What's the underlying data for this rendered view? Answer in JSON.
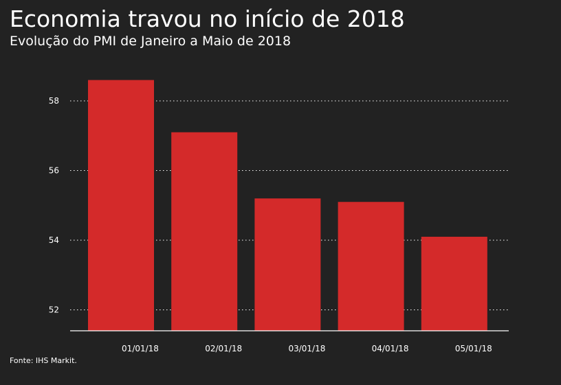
{
  "header": {
    "title": "Economia travou no início de 2018",
    "subtitle": "Evolução do PMI de Janeiro a Maio de 2018"
  },
  "footer": {
    "source": "Fonte: IHS Markit."
  },
  "colors": {
    "background": "#222222",
    "bar": "#d42a2a",
    "text": "#ffffff",
    "grid": "#ffffff"
  },
  "chart_data": {
    "type": "bar",
    "categories": [
      "01/01/18",
      "02/01/18",
      "03/01/18",
      "04/01/18",
      "05/01/18"
    ],
    "values": [
      58.6,
      57.1,
      55.2,
      55.1,
      54.1
    ],
    "yticks": [
      52,
      54,
      56,
      58
    ],
    "ylim": [
      51.4,
      59.7
    ],
    "grid": "dotted horizontal",
    "legend": "none"
  }
}
